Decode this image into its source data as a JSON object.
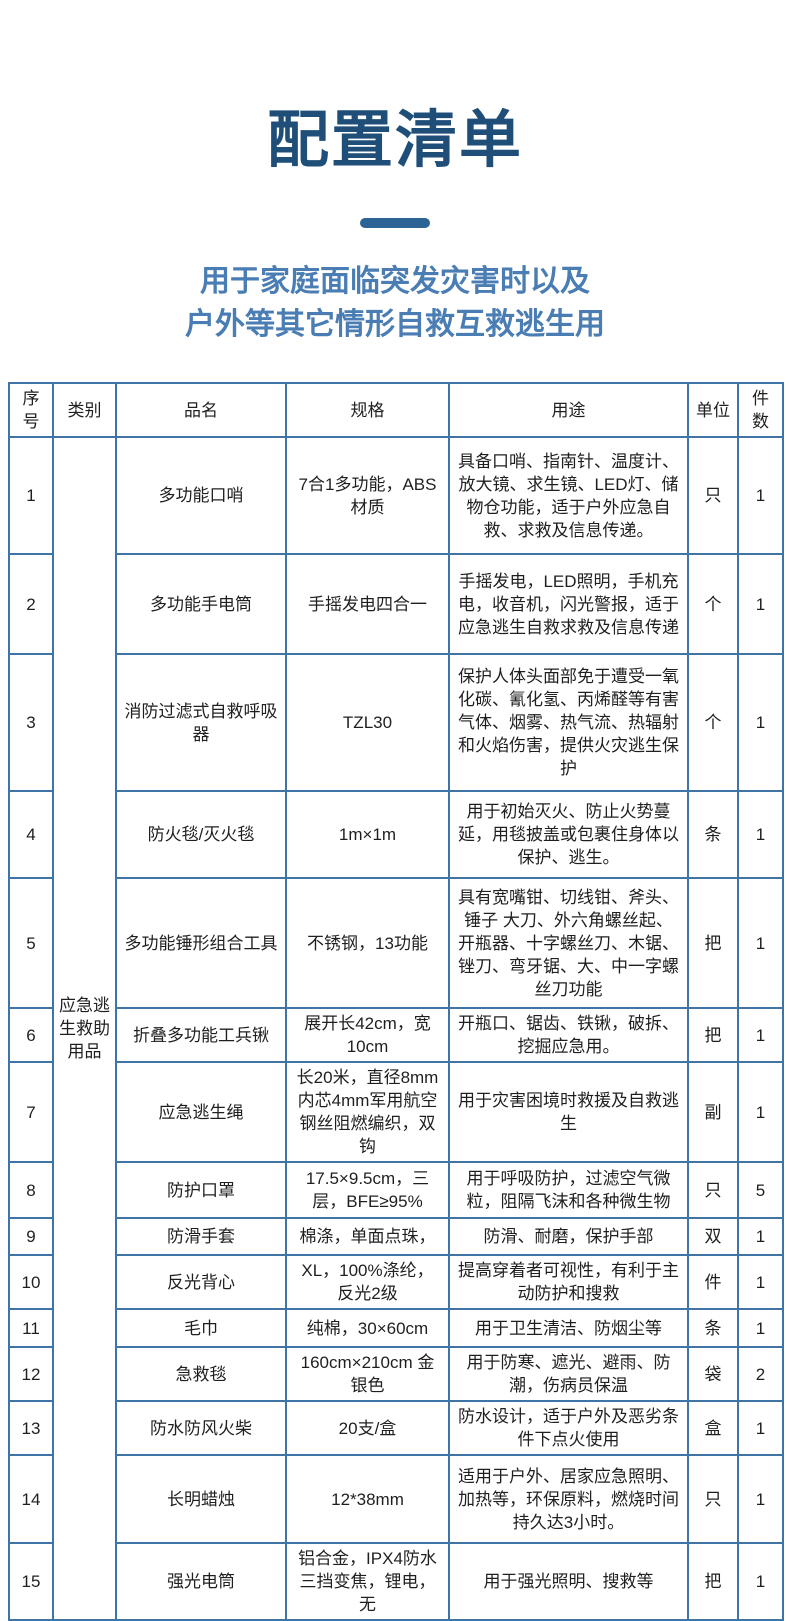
{
  "page": {
    "title": "配置清单",
    "subtitle_line1": "用于家庭面临突发灾害时以及",
    "subtitle_line2": "户外等其它情形自救互救逃生用"
  },
  "colors": {
    "title": "#1f4e79",
    "subtitle": "#4a7db3",
    "divider": "#2b6394",
    "table_border": "#3f74a6",
    "table_text": "#1f1f1f",
    "background": "#ffffff"
  },
  "table": {
    "columns": [
      "序号",
      "类别",
      "品名",
      "规格",
      "用途",
      "单位",
      "件数"
    ],
    "category": "应急逃生救助用品",
    "rows": [
      {
        "no": "1",
        "name": "多功能口哨",
        "spec": "7合1多功能，ABS材质",
        "use": "具备口哨、指南针、温度计、放大镜、求生镜、LED灯、储物仓功能，适于户外应急自救、求救及信息传递。",
        "unit": "只",
        "qty": "1"
      },
      {
        "no": "2",
        "name": "多功能手电筒",
        "spec": "手摇发电四合一",
        "use": "手摇发电，LED照明，手机充电，收音机，闪光警报，适于应急逃生自救求救及信息传递",
        "unit": "个",
        "qty": "1"
      },
      {
        "no": "3",
        "name": "消防过滤式自救呼吸器",
        "spec": "TZL30",
        "use": "保护人体头面部免于遭受一氧化碳、氰化氢、丙烯醛等有害气体、烟雾、热气流、热辐射和火焰伤害，提供火灾逃生保护",
        "unit": "个",
        "qty": "1"
      },
      {
        "no": "4",
        "name": "防火毯/灭火毯",
        "spec": "1m×1m",
        "use": "用于初始灭火、防止火势蔓延，用毯披盖或包裹住身体以保护、逃生。",
        "unit": "条",
        "qty": "1"
      },
      {
        "no": "5",
        "name": "多功能锤形组合工具",
        "spec": "不锈钢，13功能",
        "use": "具有宽嘴钳、切线钳、斧头、锤子 大刀、外六角螺丝起、开瓶器、十字螺丝刀、木锯、锉刀、弯牙锯、大、中一字螺丝刀功能",
        "unit": "把",
        "qty": "1"
      },
      {
        "no": "6",
        "name": "折叠多功能工兵锹",
        "spec": "展开长42cm，宽10cm",
        "use": "开瓶口、锯齿、铁锹，破拆、挖掘应急用。",
        "unit": "把",
        "qty": "1"
      },
      {
        "no": "7",
        "name": "应急逃生绳",
        "spec": "长20米，直径8mm内芯4mm军用航空钢丝阻燃编织，双钩",
        "use": "用于灾害困境时救援及自救逃生",
        "unit": "副",
        "qty": "1"
      },
      {
        "no": "8",
        "name": "防护口罩",
        "spec": "17.5×9.5cm，三层，BFE≥95%",
        "use": "用于呼吸防护，过滤空气微粒，阻隔飞沫和各种微生物",
        "unit": "只",
        "qty": "5"
      },
      {
        "no": "9",
        "name": "防滑手套",
        "spec": "棉涤，单面点珠，",
        "use": "防滑、耐磨，保护手部",
        "unit": "双",
        "qty": "1"
      },
      {
        "no": "10",
        "name": "反光背心",
        "spec": "XL，100%涤纶，反光2级",
        "use": "提高穿着者可视性，有利于主动防护和搜救",
        "unit": "件",
        "qty": "1"
      },
      {
        "no": "11",
        "name": "毛巾",
        "spec": "纯棉，30×60cm",
        "use": "用于卫生清洁、防烟尘等",
        "unit": "条",
        "qty": "1"
      },
      {
        "no": "12",
        "name": "急救毯",
        "spec": "160cm×210cm 金银色",
        "use": "用于防寒、遮光、避雨、防潮，伤病员保温",
        "unit": "袋",
        "qty": "2"
      },
      {
        "no": "13",
        "name": "防水防风火柴",
        "spec": "20支/盒",
        "use": "防水设计，适于户外及恶劣条件下点火使用",
        "unit": "盒",
        "qty": "1"
      },
      {
        "no": "14",
        "name": "长明蜡烛",
        "spec": "12*38mm",
        "use": "适用于户外、居家应急照明、加热等，环保原料，燃烧时间持久达3小时。",
        "unit": "只",
        "qty": "1"
      },
      {
        "no": "15",
        "name": "强光电筒",
        "spec": "铝合金，IPX4防水 三挡变焦，锂电，无",
        "use": "用于强光照明、搜救等",
        "unit": "把",
        "qty": "1"
      }
    ]
  }
}
